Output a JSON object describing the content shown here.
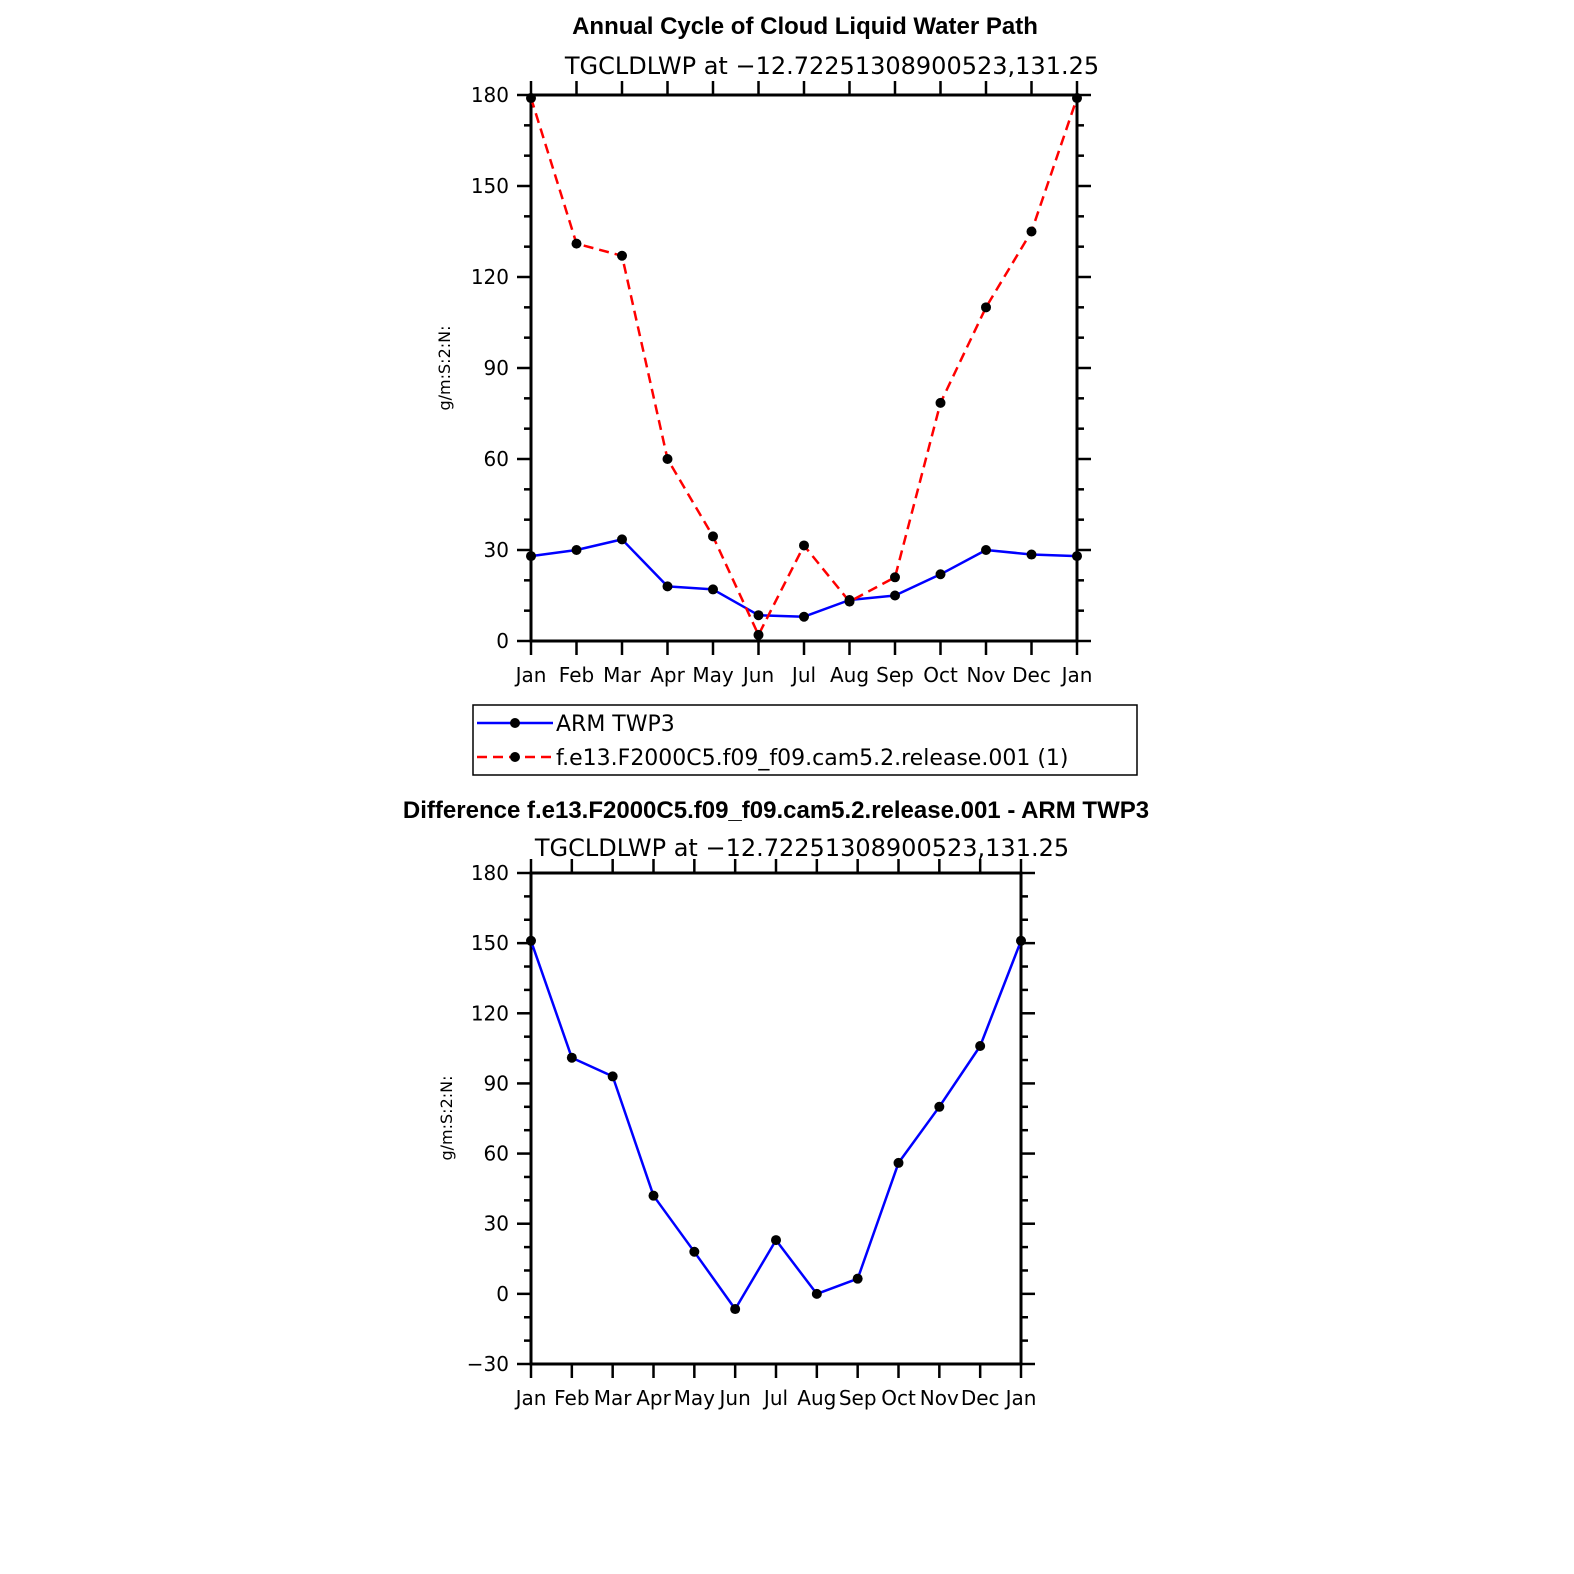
{
  "chart_data": [
    {
      "type": "line",
      "title": "Annual Cycle of Cloud Liquid Water Path",
      "subtitle": "TGCLDLWP at −12.72251308900523,131.25",
      "ylabel": "g/m:S:2:N:",
      "xlabel": "",
      "categories": [
        "Jan",
        "Feb",
        "Mar",
        "Apr",
        "May",
        "Jun",
        "Jul",
        "Aug",
        "Sep",
        "Oct",
        "Nov",
        "Dec",
        "Jan"
      ],
      "ylim": [
        0,
        180
      ],
      "yticks": [
        "0",
        "30",
        "60",
        "90",
        "120",
        "150",
        "180"
      ],
      "series": [
        {
          "name": "ARM TWP3",
          "color": "#0000ff",
          "dash": false,
          "values": [
            28,
            30,
            33.5,
            18,
            17,
            8.5,
            8,
            13.5,
            15,
            22,
            30,
            28.5,
            28
          ]
        },
        {
          "name": "f.e13.F2000C5.f09_f09.cam5.2.release.001 (1)",
          "color": "#ff0000",
          "dash": true,
          "values": [
            179,
            131,
            127,
            60,
            34.5,
            2,
            31.5,
            13,
            21,
            78.5,
            110,
            135,
            179
          ]
        }
      ],
      "legend": "below"
    },
    {
      "type": "line",
      "title": "Difference f.e13.F2000C5.f09_f09.cam5.2.release.001 - ARM TWP3",
      "subtitle": "TGCLDLWP at −12.72251308900523,131.25",
      "ylabel": "g/m:S:2:N:",
      "xlabel": "",
      "categories": [
        "Jan",
        "Feb",
        "Mar",
        "Apr",
        "May",
        "Jun",
        "Jul",
        "Aug",
        "Sep",
        "Oct",
        "Nov",
        "Dec",
        "Jan"
      ],
      "ylim": [
        -30,
        180
      ],
      "yticks": [
        "−30",
        "0",
        "30",
        "60",
        "90",
        "120",
        "150",
        "180"
      ],
      "series": [
        {
          "color": "#0000ff",
          "dash": false,
          "values": [
            151,
            101,
            93,
            42,
            18,
            -6.5,
            23,
            0,
            6.5,
            56,
            80,
            106,
            151
          ]
        }
      ]
    }
  ]
}
